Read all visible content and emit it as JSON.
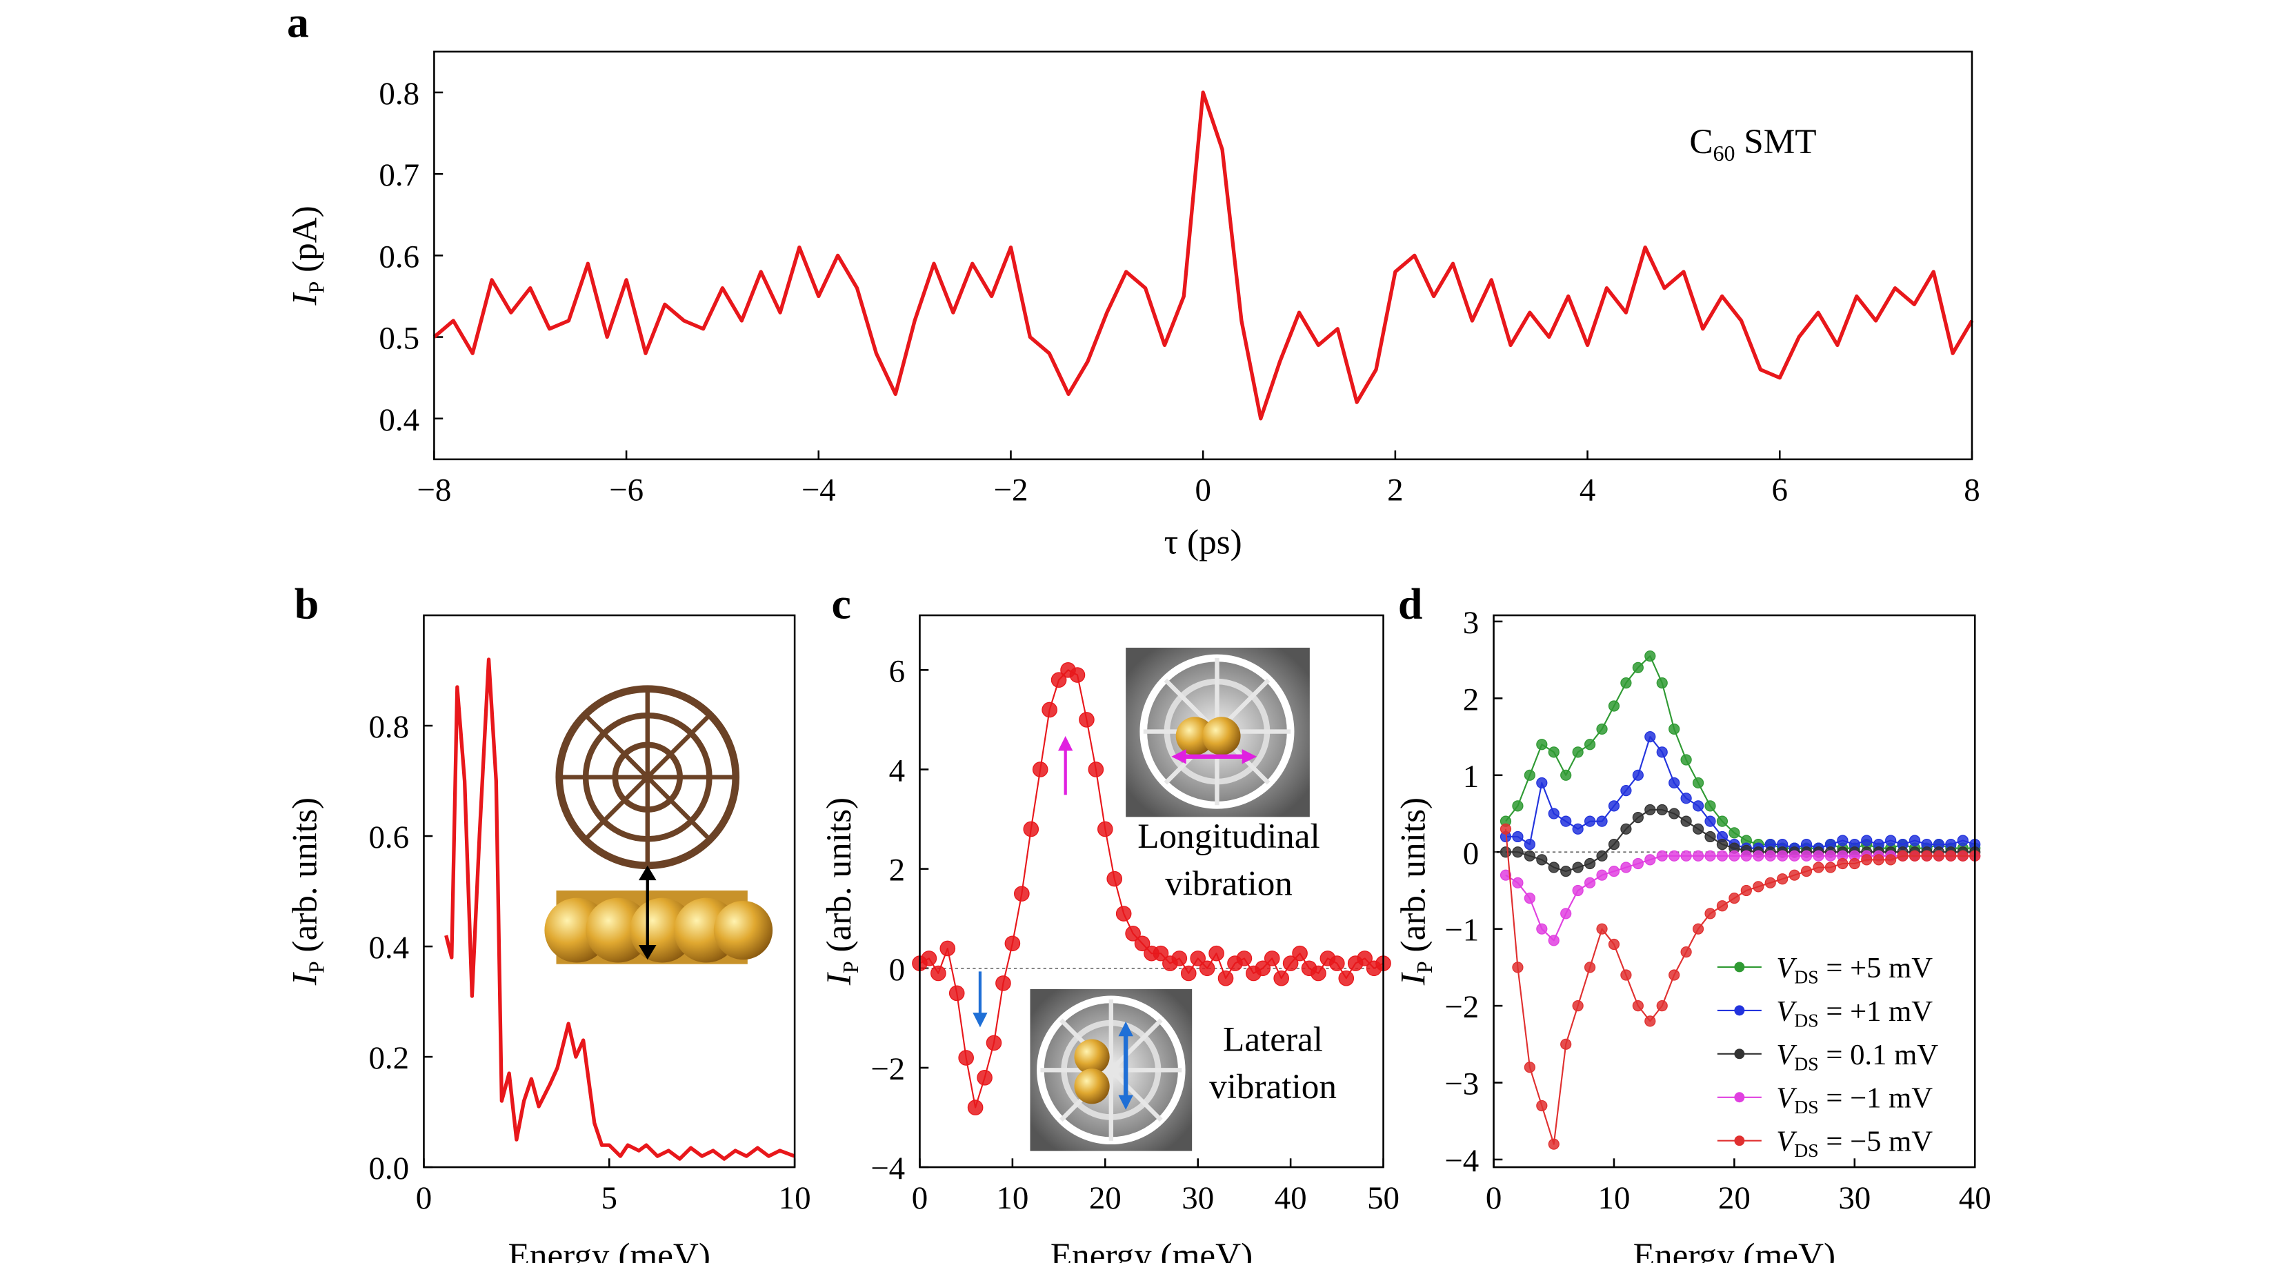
{
  "chart_data": [
    {
      "type": "line",
      "label": "a",
      "xlabel": "τ (ps)",
      "ylabel": {
        "main": "I",
        "sub": "P",
        "unit": "(pA)"
      },
      "annotation": {
        "main": "C",
        "sub": "60",
        "rest": "SMT"
      },
      "color": "#e8171b",
      "xlim": [
        -8,
        8
      ],
      "ylim": [
        0.35,
        0.85
      ],
      "xticks": [
        {
          "value": -8,
          "label": "−8"
        },
        {
          "value": -6,
          "label": "−6"
        },
        {
          "value": -4,
          "label": "−4"
        },
        {
          "value": -2,
          "label": "−2"
        },
        0,
        2,
        4,
        6,
        8
      ],
      "yticks": [
        0.4,
        0.5,
        0.6,
        0.7,
        0.8
      ],
      "x": [
        -8,
        -7.8,
        -7.6,
        -7.4,
        -7.2,
        -7,
        -6.8,
        -6.6,
        -6.4,
        -6.2,
        -6,
        -5.8,
        -5.6,
        -5.4,
        -5.2,
        -5,
        -4.8,
        -4.6,
        -4.4,
        -4.2,
        -4,
        -3.8,
        -3.6,
        -3.4,
        -3.2,
        -3,
        -2.8,
        -2.6,
        -2.4,
        -2.2,
        -2,
        -1.8,
        -1.6,
        -1.4,
        -1.2,
        -1,
        -0.8,
        -0.6,
        -0.4,
        -0.2,
        0,
        0.2,
        0.4,
        0.6,
        0.8,
        1,
        1.2,
        1.4,
        1.6,
        1.8,
        2,
        2.2,
        2.4,
        2.6,
        2.8,
        3,
        3.2,
        3.4,
        3.6,
        3.8,
        4,
        4.2,
        4.4,
        4.6,
        4.8,
        5,
        5.2,
        5.4,
        5.6,
        5.8,
        6,
        6.2,
        6.4,
        6.6,
        6.8,
        7,
        7.2,
        7.4,
        7.6,
        7.8,
        8
      ],
      "values": [
        0.5,
        0.52,
        0.48,
        0.57,
        0.53,
        0.56,
        0.51,
        0.52,
        0.59,
        0.5,
        0.57,
        0.48,
        0.54,
        0.52,
        0.51,
        0.56,
        0.52,
        0.58,
        0.53,
        0.61,
        0.55,
        0.6,
        0.56,
        0.48,
        0.43,
        0.52,
        0.59,
        0.53,
        0.59,
        0.55,
        0.61,
        0.5,
        0.48,
        0.43,
        0.47,
        0.53,
        0.58,
        0.56,
        0.49,
        0.55,
        0.8,
        0.73,
        0.52,
        0.4,
        0.47,
        0.53,
        0.49,
        0.51,
        0.42,
        0.46,
        0.58,
        0.6,
        0.55,
        0.59,
        0.52,
        0.57,
        0.49,
        0.53,
        0.5,
        0.55,
        0.49,
        0.56,
        0.53,
        0.61,
        0.56,
        0.58,
        0.51,
        0.55,
        0.52,
        0.46,
        0.45,
        0.5,
        0.53,
        0.49,
        0.55,
        0.52,
        0.56,
        0.54,
        0.58,
        0.48,
        0.52
      ]
    },
    {
      "type": "line",
      "label": "b",
      "xlabel": "Energy (meV)",
      "ylabel": {
        "main": "I",
        "sub": "P",
        "unit": "(arb. units)"
      },
      "color": "#e8171b",
      "xlim": [
        0,
        10
      ],
      "ylim": [
        0,
        1.0
      ],
      "xticks": [
        0,
        5,
        10
      ],
      "yticks": [
        {
          "value": 0,
          "label": "0.0"
        },
        0.2,
        0.4,
        0.6,
        0.8
      ],
      "x": [
        0.6,
        0.75,
        0.9,
        1.1,
        1.3,
        1.5,
        1.75,
        1.95,
        2.1,
        2.3,
        2.5,
        2.7,
        2.9,
        3.1,
        3.4,
        3.6,
        3.9,
        4.1,
        4.3,
        4.6,
        4.8,
        5.0,
        5.3,
        5.5,
        5.8,
        6.0,
        6.3,
        6.6,
        6.9,
        7.2,
        7.5,
        7.8,
        8.1,
        8.4,
        8.7,
        9.0,
        9.3,
        9.6,
        10.0
      ],
      "values": [
        0.42,
        0.38,
        0.87,
        0.7,
        0.31,
        0.6,
        0.92,
        0.7,
        0.12,
        0.17,
        0.05,
        0.12,
        0.16,
        0.11,
        0.15,
        0.18,
        0.26,
        0.2,
        0.23,
        0.08,
        0.04,
        0.04,
        0.02,
        0.04,
        0.03,
        0.04,
        0.02,
        0.03,
        0.015,
        0.035,
        0.02,
        0.03,
        0.015,
        0.03,
        0.02,
        0.035,
        0.02,
        0.03,
        0.02
      ]
    },
    {
      "type": "line",
      "label": "c",
      "markers": true,
      "xlabel": "Energy (meV)",
      "ylabel": {
        "main": "I",
        "sub": "P",
        "unit": "(arb. units)"
      },
      "annotations": [
        "Longitudinal",
        "vibration",
        "Lateral",
        "vibration"
      ],
      "color": "#e8171b",
      "hline": 0,
      "xlim": [
        0,
        50
      ],
      "ylim": [
        -4,
        7.1
      ],
      "xticks": [
        0,
        10,
        20,
        30,
        40,
        50
      ],
      "yticks": [
        {
          "value": -4,
          "label": "−4"
        },
        {
          "value": -2,
          "label": "−2"
        },
        0,
        2,
        4,
        6
      ],
      "x": [
        0,
        1,
        2,
        3,
        4,
        5,
        6,
        7,
        8,
        9,
        10,
        11,
        12,
        13,
        14,
        15,
        16,
        17,
        18,
        19,
        20,
        21,
        22,
        23,
        24,
        25,
        26,
        27,
        28,
        29,
        30,
        31,
        32,
        33,
        34,
        35,
        36,
        37,
        38,
        39,
        40,
        41,
        42,
        43,
        44,
        45,
        46,
        47,
        48,
        49,
        50
      ],
      "values": [
        0.1,
        0.2,
        -0.1,
        0.4,
        -0.5,
        -1.8,
        -2.8,
        -2.2,
        -1.5,
        -0.3,
        0.5,
        1.5,
        2.8,
        4.0,
        5.2,
        5.8,
        6.0,
        5.9,
        5.0,
        4.0,
        2.8,
        1.8,
        1.1,
        0.7,
        0.5,
        0.3,
        0.3,
        0.1,
        0.2,
        -0.1,
        0.2,
        0.0,
        0.3,
        -0.2,
        0.1,
        0.2,
        -0.1,
        0.0,
        0.2,
        -0.2,
        0.1,
        0.3,
        0.0,
        -0.1,
        0.2,
        0.1,
        -0.2,
        0.1,
        0.2,
        0.0,
        0.1
      ]
    },
    {
      "type": "line",
      "label": "d",
      "markers": true,
      "xlabel": "Energy (meV)",
      "ylabel": {
        "main": "I",
        "sub": "P",
        "unit": "(arb. units)"
      },
      "legend": "lower right",
      "legend_symbol": {
        "main": "V",
        "sub": "DS"
      },
      "hline": 0,
      "xlim": [
        0,
        40
      ],
      "ylim": [
        -4.1,
        3.08
      ],
      "xticks": [
        0,
        10,
        20,
        30,
        40
      ],
      "yticks": [
        {
          "value": -4,
          "label": "−4"
        },
        {
          "value": -3,
          "label": "−3"
        },
        {
          "value": -2,
          "label": "−2"
        },
        {
          "value": -1,
          "label": "−1"
        },
        0,
        1,
        2,
        3
      ],
      "x": [
        1,
        2,
        3,
        4,
        5,
        6,
        7,
        8,
        9,
        10,
        11,
        12,
        13,
        14,
        15,
        16,
        17,
        18,
        19,
        20,
        21,
        22,
        23,
        24,
        25,
        26,
        27,
        28,
        29,
        30,
        31,
        32,
        33,
        34,
        35,
        36,
        37,
        38,
        39,
        40
      ],
      "series": [
        {
          "name": "= +5 mV",
          "color": "#2f9a33",
          "values": [
            0.4,
            0.6,
            1.0,
            1.4,
            1.3,
            1.0,
            1.3,
            1.4,
            1.6,
            1.9,
            2.2,
            2.4,
            2.55,
            2.2,
            1.6,
            1.2,
            0.9,
            0.6,
            0.4,
            0.25,
            0.15,
            0.1,
            0.1,
            0.05,
            0.05,
            0.05,
            0.05,
            0.1,
            0.05,
            0.05,
            0.1,
            0.05,
            0.05,
            0.1,
            0.05,
            0.05,
            0.1,
            0.05,
            0.05,
            0.05
          ]
        },
        {
          "name": "= +1 mV",
          "color": "#2233dd",
          "values": [
            0.2,
            0.2,
            0.1,
            0.9,
            0.5,
            0.4,
            0.3,
            0.4,
            0.4,
            0.6,
            0.8,
            1.0,
            1.5,
            1.3,
            0.9,
            0.7,
            0.6,
            0.4,
            0.2,
            0.1,
            0.05,
            0.05,
            0.1,
            0.1,
            0.05,
            0.1,
            0.05,
            0.1,
            0.15,
            0.1,
            0.15,
            0.1,
            0.15,
            0.1,
            0.15,
            0.1,
            0.1,
            0.1,
            0.15,
            0.1
          ]
        },
        {
          "name": "= 0.1 mV",
          "color": "#333333",
          "values": [
            0,
            0,
            -0.05,
            -0.1,
            -0.2,
            -0.25,
            -0.2,
            -0.15,
            -0.05,
            0.1,
            0.3,
            0.45,
            0.55,
            0.55,
            0.5,
            0.4,
            0.3,
            0.2,
            0.1,
            0.05,
            0.02,
            0,
            0,
            0,
            0,
            0,
            0,
            0,
            0,
            0,
            0,
            0,
            0,
            0,
            0,
            0,
            0,
            0,
            0,
            0
          ]
        },
        {
          "name": "= −1 mV",
          "color": "#e040e0",
          "values": [
            -0.3,
            -0.4,
            -0.6,
            -1.0,
            -1.15,
            -0.8,
            -0.5,
            -0.4,
            -0.3,
            -0.25,
            -0.2,
            -0.15,
            -0.1,
            -0.05,
            -0.05,
            -0.05,
            -0.05,
            -0.05,
            -0.05,
            -0.05,
            -0.05,
            -0.05,
            -0.05,
            -0.05,
            -0.05,
            -0.05,
            -0.05,
            -0.05,
            -0.05,
            -0.05,
            -0.05,
            -0.05,
            -0.05,
            -0.05,
            -0.05,
            -0.05,
            -0.05,
            -0.05,
            -0.05,
            -0.05
          ]
        },
        {
          "name": "= −5 mV",
          "color": "#e03030",
          "values": [
            0.3,
            -1.5,
            -2.8,
            -3.3,
            -3.8,
            -2.5,
            -2.0,
            -1.5,
            -1.0,
            -1.2,
            -1.6,
            -2.0,
            -2.2,
            -2.0,
            -1.6,
            -1.3,
            -1.0,
            -0.8,
            -0.7,
            -0.6,
            -0.5,
            -0.45,
            -0.4,
            -0.35,
            -0.3,
            -0.25,
            -0.2,
            -0.2,
            -0.15,
            -0.15,
            -0.1,
            -0.1,
            -0.1,
            -0.05,
            -0.05,
            -0.05,
            -0.05,
            -0.05,
            -0.05,
            -0.05
          ]
        }
      ]
    }
  ]
}
